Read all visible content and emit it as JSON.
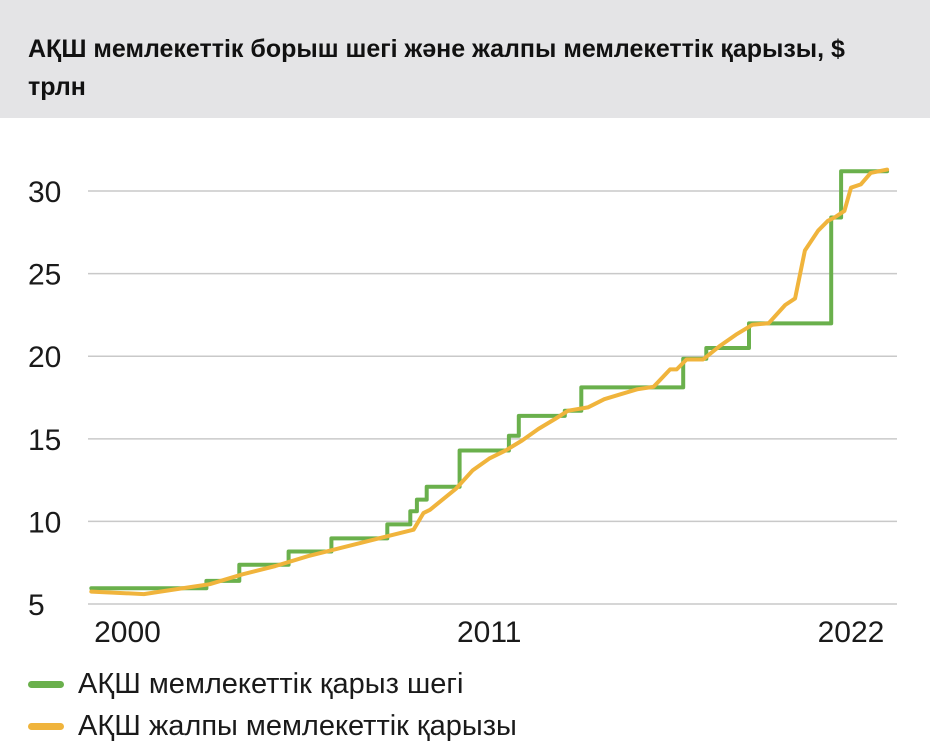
{
  "header": {
    "title": "АҚШ мемлекеттік борыш шегі және жалпы мемлекеттік қарызы, $ трлн"
  },
  "chart_data": {
    "type": "line",
    "title": "АҚШ мемлекеттік борыш шегі және жалпы мемлекеттік қарызы, $ трлн",
    "xlabel": "",
    "ylabel": "",
    "xlim": [
      1998.8,
      2023.4
    ],
    "ylim": [
      5,
      32
    ],
    "yticks": [
      5,
      10,
      15,
      20,
      25,
      30
    ],
    "xticks": [
      2000,
      2011,
      2022
    ],
    "grid": true,
    "legend_position": "bottom-left",
    "series": [
      {
        "name": "АҚШ мемлекеттік қарыз шегі",
        "color": "#6ab04c",
        "style": "step",
        "points": [
          [
            1998.9,
            5.95
          ],
          [
            2002.4,
            5.95
          ],
          [
            2002.4,
            6.4
          ],
          [
            2003.4,
            6.4
          ],
          [
            2003.4,
            7.38
          ],
          [
            2004.9,
            7.38
          ],
          [
            2004.9,
            8.18
          ],
          [
            2006.2,
            8.18
          ],
          [
            2006.2,
            8.97
          ],
          [
            2007.9,
            8.97
          ],
          [
            2007.9,
            9.82
          ],
          [
            2008.6,
            9.82
          ],
          [
            2008.6,
            10.62
          ],
          [
            2008.8,
            10.62
          ],
          [
            2008.8,
            11.32
          ],
          [
            2009.1,
            11.32
          ],
          [
            2009.1,
            12.1
          ],
          [
            2010.1,
            12.1
          ],
          [
            2010.1,
            14.29
          ],
          [
            2011.6,
            14.29
          ],
          [
            2011.6,
            15.19
          ],
          [
            2011.9,
            15.19
          ],
          [
            2011.9,
            16.39
          ],
          [
            2013.3,
            16.39
          ],
          [
            2013.3,
            16.7
          ],
          [
            2013.8,
            16.7
          ],
          [
            2013.8,
            18.11
          ],
          [
            2016.9,
            18.11
          ],
          [
            2016.9,
            19.85
          ],
          [
            2017.6,
            19.85
          ],
          [
            2017.6,
            20.5
          ],
          [
            2018.9,
            20.5
          ],
          [
            2018.9,
            21.99
          ],
          [
            2021.4,
            21.99
          ],
          [
            2021.4,
            28.4
          ],
          [
            2021.7,
            28.4
          ],
          [
            2021.7,
            31.2
          ],
          [
            2023.1,
            31.2
          ]
        ]
      },
      {
        "name": "АҚШ жалпы мемлекеттік қарызы",
        "color": "#f0b43c",
        "style": "line",
        "points": [
          [
            1998.9,
            5.75
          ],
          [
            2000.5,
            5.6
          ],
          [
            2001.5,
            5.9
          ],
          [
            2002.5,
            6.2
          ],
          [
            2003.5,
            6.8
          ],
          [
            2004.5,
            7.3
          ],
          [
            2005.5,
            7.9
          ],
          [
            2006.5,
            8.4
          ],
          [
            2007.5,
            8.9
          ],
          [
            2008.7,
            9.5
          ],
          [
            2009.0,
            10.5
          ],
          [
            2009.2,
            10.7
          ],
          [
            2010.0,
            12.0
          ],
          [
            2010.5,
            13.1
          ],
          [
            2011.0,
            13.8
          ],
          [
            2011.5,
            14.3
          ],
          [
            2012.0,
            14.9
          ],
          [
            2012.5,
            15.6
          ],
          [
            2013.0,
            16.2
          ],
          [
            2013.4,
            16.7
          ],
          [
            2014.0,
            16.9
          ],
          [
            2014.5,
            17.4
          ],
          [
            2015.0,
            17.7
          ],
          [
            2015.5,
            18.0
          ],
          [
            2016.0,
            18.15
          ],
          [
            2016.5,
            19.2
          ],
          [
            2016.7,
            19.2
          ],
          [
            2017.0,
            19.8
          ],
          [
            2017.5,
            19.8
          ],
          [
            2018.0,
            20.6
          ],
          [
            2018.5,
            21.3
          ],
          [
            2019.0,
            21.9
          ],
          [
            2019.5,
            22.0
          ],
          [
            2020.0,
            23.1
          ],
          [
            2020.3,
            23.5
          ],
          [
            2020.6,
            26.4
          ],
          [
            2021.0,
            27.6
          ],
          [
            2021.3,
            28.2
          ],
          [
            2021.5,
            28.4
          ],
          [
            2021.8,
            28.8
          ],
          [
            2022.0,
            30.2
          ],
          [
            2022.3,
            30.4
          ],
          [
            2022.6,
            31.1
          ],
          [
            2023.1,
            31.3
          ]
        ]
      }
    ]
  }
}
